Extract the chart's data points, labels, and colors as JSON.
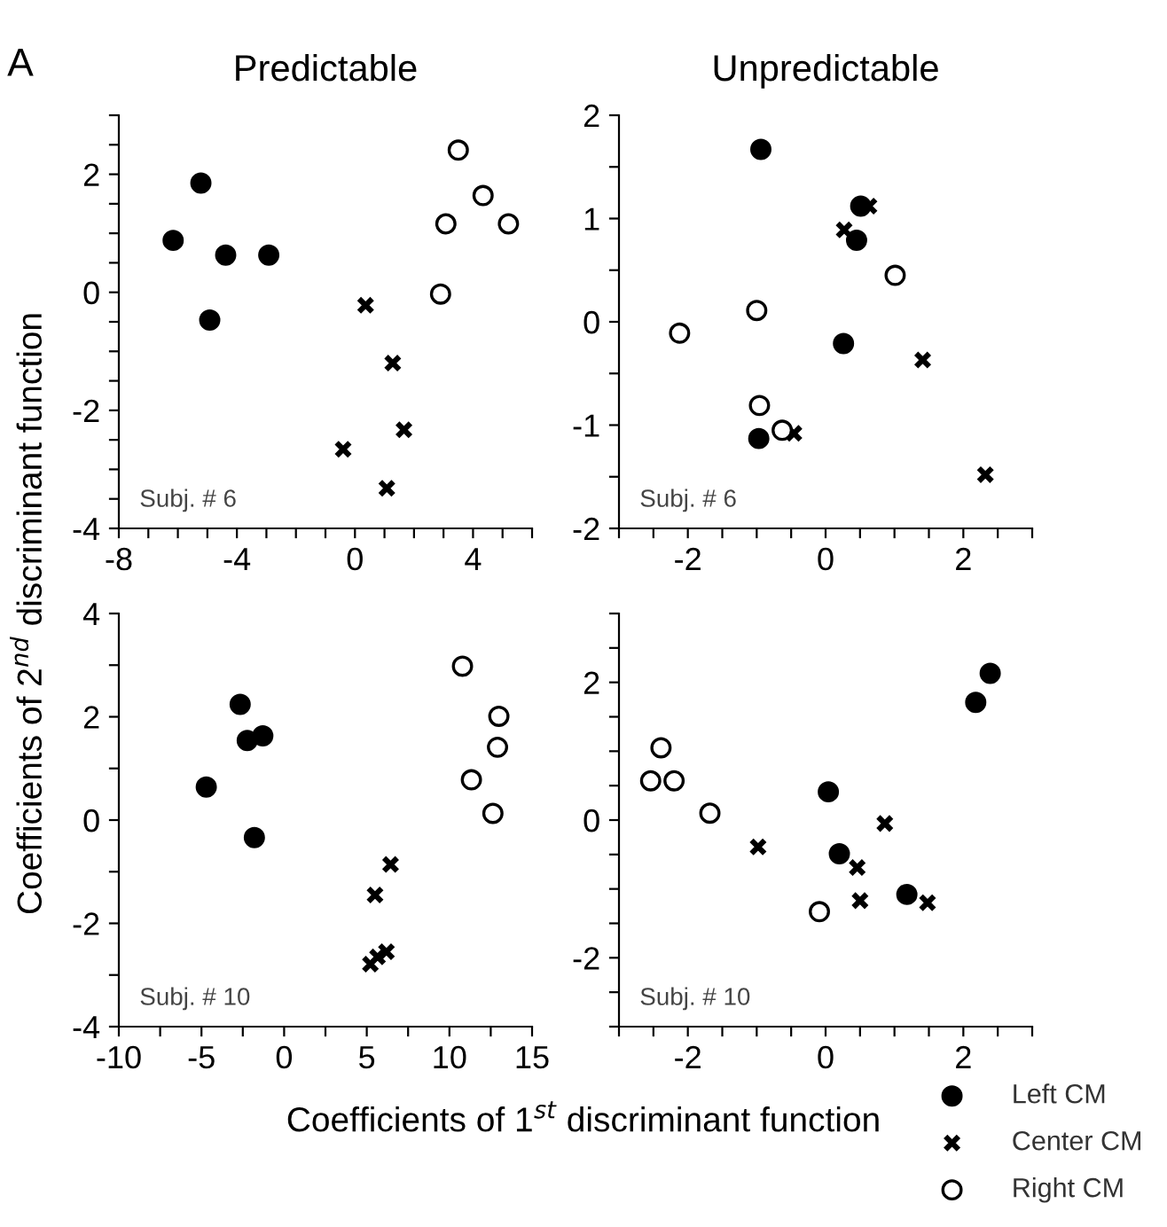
{
  "chart_data": [
    {
      "type": "scatter",
      "title": "Predictable",
      "ylabel": "Coefficients of 2$^{nd}$ discriminant function",
      "annotations": [
        "A",
        "Subj. # 6"
      ],
      "xlim": [
        -8,
        6
      ],
      "ylim": [
        -4,
        3
      ],
      "xticks": [
        -8,
        {
          "value": -7,
          "label": null
        },
        {
          "value": -6,
          "label": null
        },
        {
          "value": -5,
          "label": null
        },
        -4,
        {
          "value": -3,
          "label": null
        },
        {
          "value": -2,
          "label": null
        },
        {
          "value": -1,
          "label": null
        },
        0,
        {
          "value": 1,
          "label": null
        },
        {
          "value": 2,
          "label": null
        },
        {
          "value": 3,
          "label": null
        },
        4,
        {
          "value": 5,
          "label": null
        },
        {
          "value": 6,
          "label": null
        }
      ],
      "yticks": [
        -4,
        {
          "value": -3.5,
          "label": null
        },
        {
          "value": -3,
          "label": null
        },
        {
          "value": -2.5,
          "label": null
        },
        -2,
        {
          "value": -1.5,
          "label": null
        },
        {
          "value": -1,
          "label": null
        },
        {
          "value": -0.5,
          "label": null
        },
        0,
        {
          "value": 0.5,
          "label": null
        },
        {
          "value": 1,
          "label": null
        },
        {
          "value": 1.5,
          "label": null
        },
        2,
        {
          "value": 2.5,
          "label": null
        },
        {
          "value": 3,
          "label": null
        }
      ],
      "grid": false,
      "series": [
        {
          "color": "#000000",
          "marker": "circle",
          "x": [
            -6.16,
            -5.22,
            -4.38,
            -2.92,
            -4.92
          ],
          "values": [
            0.88,
            1.85,
            0.63,
            0.63,
            -0.47
          ]
        },
        {
          "color": "#000000",
          "marker": "cross",
          "x": [
            0.36,
            1.28,
            1.66,
            -0.4,
            1.08
          ],
          "values": [
            -0.22,
            -1.2,
            -2.33,
            -2.66,
            -3.32
          ]
        },
        {
          "color": "#ffffff",
          "marker": "circle",
          "x": [
            3.5,
            4.34,
            3.08,
            5.2,
            2.9
          ],
          "values": [
            2.41,
            1.64,
            1.16,
            1.16,
            -0.03
          ]
        }
      ]
    },
    {
      "type": "scatter",
      "title": "Unpredictable",
      "annotations": [
        "Subj. # 6"
      ],
      "xlim": [
        -3,
        3
      ],
      "ylim": [
        -2,
        2
      ],
      "xticks": [
        {
          "value": -3,
          "label": null
        },
        {
          "value": -2.5,
          "label": null
        },
        -2,
        {
          "value": -1.5,
          "label": null
        },
        {
          "value": -1,
          "label": null
        },
        {
          "value": -0.5,
          "label": null
        },
        0,
        {
          "value": 0.5,
          "label": null
        },
        {
          "value": 1,
          "label": null
        },
        {
          "value": 1.5,
          "label": null
        },
        2,
        {
          "value": 2.5,
          "label": null
        },
        {
          "value": 3,
          "label": null
        }
      ],
      "yticks": [
        -2,
        {
          "value": -1.5,
          "label": null
        },
        -1,
        {
          "value": -0.5,
          "label": null
        },
        0,
        {
          "value": 0.5,
          "label": null
        },
        1,
        {
          "value": 1.5,
          "label": null
        },
        2
      ],
      "grid": false,
      "series": [
        {
          "color": "#000000",
          "marker": "circle",
          "x": [
            -0.94,
            0.51,
            0.45,
            0.26,
            -0.97
          ],
          "values": [
            1.67,
            1.12,
            0.79,
            -0.21,
            -1.13
          ]
        },
        {
          "color": "#000000",
          "marker": "cross",
          "x": [
            0.63,
            0.27,
            1.41,
            -0.46,
            2.32
          ],
          "values": [
            1.12,
            0.89,
            -0.37,
            -1.08,
            -1.48
          ]
        },
        {
          "color": "#ffffff",
          "marker": "circle",
          "x": [
            1.01,
            -1.0,
            -2.12,
            -0.96,
            -0.63
          ],
          "values": [
            0.45,
            0.11,
            -0.11,
            -0.81,
            -1.05
          ]
        }
      ]
    },
    {
      "type": "scatter",
      "xlabel": "Coefficients of 1$^{st}$ discriminant function",
      "annotations": [
        "Subj. # 10"
      ],
      "xlim": [
        -10,
        15
      ],
      "ylim": [
        -4,
        4
      ],
      "xticks": [
        -10,
        {
          "value": -7.5,
          "label": null
        },
        -5,
        {
          "value": -2.5,
          "label": null
        },
        0,
        {
          "value": 2.5,
          "label": null
        },
        5,
        {
          "value": 7.5,
          "label": null
        },
        10,
        {
          "value": 12.5,
          "label": null
        },
        15
      ],
      "yticks": [
        -4,
        {
          "value": -3,
          "label": null
        },
        -2,
        {
          "value": -1,
          "label": null
        },
        0,
        {
          "value": 1,
          "label": null
        },
        2,
        {
          "value": 3,
          "label": null
        },
        4
      ],
      "grid": false,
      "series": [
        {
          "color": "#000000",
          "marker": "circle",
          "x": [
            -2.66,
            -2.23,
            -1.29,
            -4.71,
            -1.8
          ],
          "values": [
            2.24,
            1.54,
            1.63,
            0.64,
            -0.34
          ]
        },
        {
          "color": "#000000",
          "marker": "cross",
          "x": [
            6.44,
            5.5,
            6.19,
            5.65,
            5.22
          ],
          "values": [
            -0.86,
            -1.45,
            -2.55,
            -2.65,
            -2.79
          ]
        },
        {
          "color": "#ffffff",
          "marker": "circle",
          "x": [
            10.79,
            12.99,
            12.91,
            11.33,
            12.63
          ],
          "values": [
            2.98,
            2.01,
            1.41,
            0.78,
            0.13
          ]
        }
      ]
    },
    {
      "type": "scatter",
      "annotations": [
        "Subj. # 10"
      ],
      "xlim": [
        -3,
        3
      ],
      "ylim": [
        -3,
        3
      ],
      "legend": "bottom right",
      "xticks": [
        {
          "value": -3,
          "label": null
        },
        {
          "value": -2.5,
          "label": null
        },
        -2,
        {
          "value": -1.5,
          "label": null
        },
        {
          "value": -1,
          "label": null
        },
        {
          "value": -0.5,
          "label": null
        },
        0,
        {
          "value": 0.5,
          "label": null
        },
        {
          "value": 1,
          "label": null
        },
        {
          "value": 1.5,
          "label": null
        },
        2,
        {
          "value": 2.5,
          "label": null
        },
        {
          "value": 3,
          "label": null
        }
      ],
      "yticks": [
        {
          "value": -3,
          "label": null
        },
        {
          "value": -2.5,
          "label": null
        },
        -2,
        {
          "value": -1.5,
          "label": null
        },
        {
          "value": -1,
          "label": null
        },
        {
          "value": -0.5,
          "label": null
        },
        0,
        {
          "value": 0.5,
          "label": null
        },
        {
          "value": 1,
          "label": null
        },
        {
          "value": 1.5,
          "label": null
        },
        2,
        {
          "value": 2.5,
          "label": null
        },
        {
          "value": 3,
          "label": null
        }
      ],
      "grid": false,
      "series": [
        {
          "name": "Left CM",
          "color": "#000000",
          "marker": "circle",
          "x": [
            2.39,
            2.18,
            0.04,
            0.2,
            1.18
          ],
          "values": [
            2.13,
            1.71,
            0.41,
            -0.49,
            -1.08
          ]
        },
        {
          "name": "Center CM",
          "color": "#000000",
          "marker": "cross",
          "x": [
            0.86,
            -0.98,
            0.46,
            0.5,
            1.48
          ],
          "values": [
            -0.05,
            -0.39,
            -0.69,
            -1.17,
            -1.2
          ]
        },
        {
          "name": "Right CM",
          "color": "#ffffff",
          "marker": "circle",
          "x": [
            -2.39,
            -2.54,
            -2.2,
            -1.68,
            -0.09
          ],
          "values": [
            1.05,
            0.57,
            0.57,
            0.1,
            -1.33
          ]
        }
      ]
    }
  ]
}
